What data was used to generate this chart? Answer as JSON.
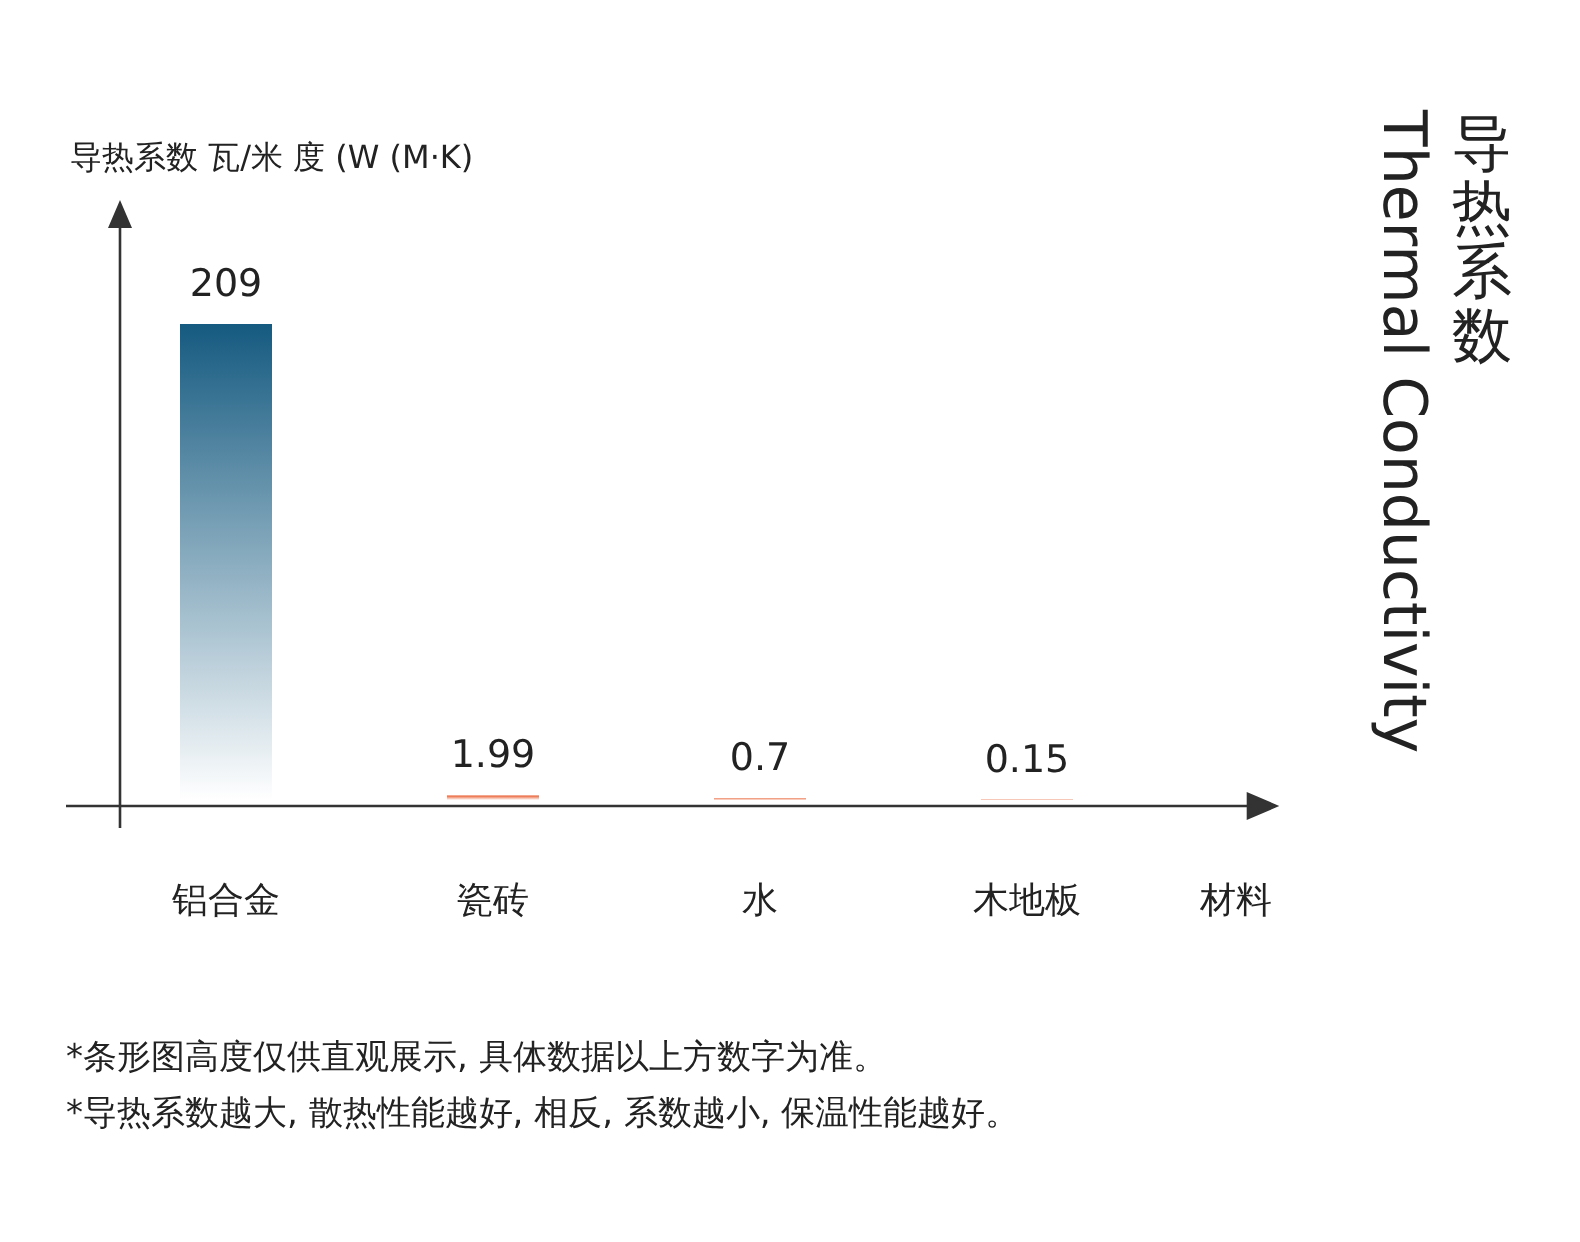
{
  "chart_data": {
    "type": "bar",
    "title": "导热系数",
    "subtitle": "Thermal Conductivity",
    "ylabel": "导热系数 瓦/米 度 (W (M·K)",
    "xlabel": "材料",
    "categories": [
      "铝合金",
      "瓷砖",
      "水",
      "木地板"
    ],
    "values": [
      209,
      1.99,
      0.7,
      0.15
    ],
    "data_labels": true,
    "colors": [
      "#155a80",
      "#e8582a",
      "#e8582a",
      "#e8582a"
    ],
    "annotations": [
      "*条形图高度仅供直观展示, 具体数据以上方数字为准。",
      "*导热系数越大, 散热性能越好, 相反, 系数越小, 保温性能越好。"
    ]
  }
}
